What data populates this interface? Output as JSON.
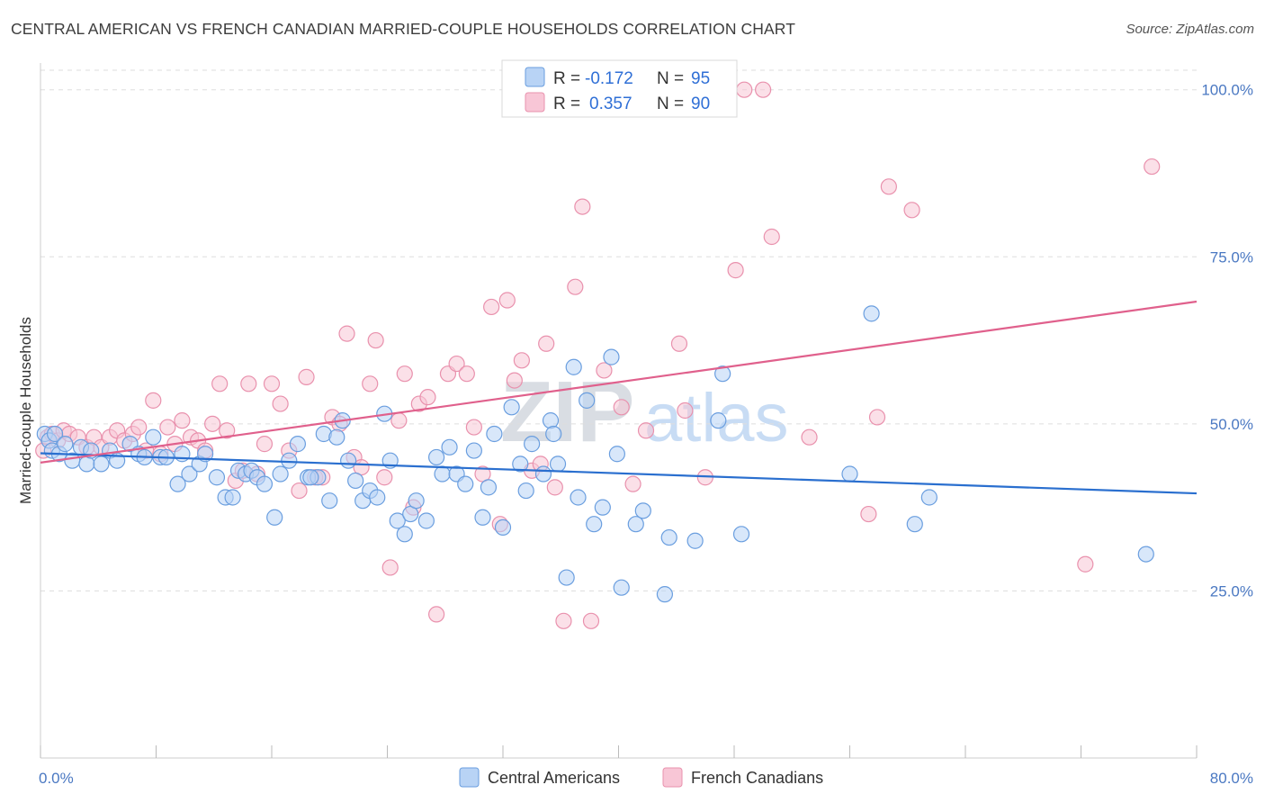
{
  "title": "CENTRAL AMERICAN VS FRENCH CANADIAN MARRIED-COUPLE HOUSEHOLDS CORRELATION CHART",
  "source": "Source: ZipAtlas.com",
  "watermark": {
    "zip": "ZIP",
    "atlas": "atlas"
  },
  "colors": {
    "blue_fill": "#b8d3f5",
    "blue_stroke": "#6a9edf",
    "blue_line": "#2a6fcf",
    "pink_fill": "#f8c6d6",
    "pink_stroke": "#e991ad",
    "pink_line": "#e0608c",
    "grid": "#dddddd",
    "axis_label": "#4a78c2"
  },
  "legend": {
    "r_label": "R =",
    "n_label": "N =",
    "rows": [
      {
        "r": "-0.172",
        "n": "95",
        "color": "blue"
      },
      {
        "r": "0.357",
        "n": "90",
        "color": "pink"
      }
    ]
  },
  "chart_data": {
    "type": "scatter",
    "xlabel": "",
    "ylabel": "Married-couple Households",
    "xlim": [
      0,
      80
    ],
    "ylim": [
      0,
      104
    ],
    "y_ticks": [
      {
        "value": 25,
        "label": "25.0%"
      },
      {
        "value": 50,
        "label": "50.0%"
      },
      {
        "value": 75,
        "label": "75.0%"
      },
      {
        "value": 100,
        "label": "100.0%"
      }
    ],
    "x_tick_labels": [
      {
        "value": 0,
        "label": "0.0%"
      },
      {
        "value": 80,
        "label": "80.0%"
      }
    ],
    "x_minor_ticks": [
      0,
      8,
      16,
      24,
      32,
      40,
      48,
      56,
      64,
      72,
      80
    ],
    "grid": true,
    "legend_position": "top-center",
    "series": [
      {
        "name": "Central Americans",
        "color": "blue",
        "trend": {
          "x": [
            0,
            80
          ],
          "y": [
            45.6,
            39.6
          ]
        },
        "points": [
          [
            0.3,
            48.5
          ],
          [
            0.6,
            47.5
          ],
          [
            0.8,
            46
          ],
          [
            1.0,
            48.5
          ],
          [
            1.3,
            45.5
          ],
          [
            1.7,
            47
          ],
          [
            2.2,
            44.5
          ],
          [
            2.8,
            46.5
          ],
          [
            3.2,
            44
          ],
          [
            3.5,
            46
          ],
          [
            4.2,
            44
          ],
          [
            4.8,
            46
          ],
          [
            5.3,
            44.5
          ],
          [
            6.2,
            47
          ],
          [
            6.8,
            45.5
          ],
          [
            7.2,
            45
          ],
          [
            7.8,
            48
          ],
          [
            8.3,
            45
          ],
          [
            8.7,
            45
          ],
          [
            9.5,
            41
          ],
          [
            9.8,
            45.5
          ],
          [
            10.3,
            42.5
          ],
          [
            11.0,
            44
          ],
          [
            11.4,
            45.5
          ],
          [
            12.2,
            42
          ],
          [
            12.8,
            39
          ],
          [
            13.3,
            39
          ],
          [
            13.7,
            43
          ],
          [
            14.2,
            42.5
          ],
          [
            14.6,
            43
          ],
          [
            15.0,
            42
          ],
          [
            15.5,
            41
          ],
          [
            16.2,
            36
          ],
          [
            16.6,
            42.5
          ],
          [
            17.2,
            44.5
          ],
          [
            17.8,
            47
          ],
          [
            18.5,
            42
          ],
          [
            19.2,
            42
          ],
          [
            19.6,
            48.5
          ],
          [
            20.0,
            38.5
          ],
          [
            20.5,
            48
          ],
          [
            20.9,
            50.5
          ],
          [
            21.3,
            44.5
          ],
          [
            21.8,
            41.5
          ],
          [
            22.3,
            38.5
          ],
          [
            22.8,
            40
          ],
          [
            23.3,
            39
          ],
          [
            23.8,
            51.5
          ],
          [
            24.2,
            44.5
          ],
          [
            24.7,
            35.5
          ],
          [
            25.2,
            33.5
          ],
          [
            25.6,
            36.5
          ],
          [
            26.0,
            38.5
          ],
          [
            26.7,
            35.5
          ],
          [
            27.4,
            45
          ],
          [
            27.8,
            42.5
          ],
          [
            28.3,
            46.5
          ],
          [
            28.8,
            42.5
          ],
          [
            29.4,
            41
          ],
          [
            30.0,
            46
          ],
          [
            30.6,
            36
          ],
          [
            31.0,
            40.5
          ],
          [
            31.4,
            48.5
          ],
          [
            32.0,
            34.5
          ],
          [
            32.6,
            52.5
          ],
          [
            33.2,
            44
          ],
          [
            33.6,
            40
          ],
          [
            34.0,
            47
          ],
          [
            34.8,
            42.5
          ],
          [
            35.3,
            50.5
          ],
          [
            35.8,
            44
          ],
          [
            36.4,
            27
          ],
          [
            36.9,
            58.5
          ],
          [
            37.2,
            39
          ],
          [
            37.8,
            53.5
          ],
          [
            38.3,
            35
          ],
          [
            38.9,
            37.5
          ],
          [
            39.5,
            60
          ],
          [
            39.9,
            45.5
          ],
          [
            40.2,
            25.5
          ],
          [
            41.2,
            35
          ],
          [
            41.7,
            37
          ],
          [
            43.2,
            24.5
          ],
          [
            43.5,
            33
          ],
          [
            45.3,
            32.5
          ],
          [
            46.9,
            50.5
          ],
          [
            47.2,
            57.5
          ],
          [
            48.5,
            33.5
          ],
          [
            56.0,
            42.5
          ],
          [
            57.5,
            66.5
          ],
          [
            60.5,
            35
          ],
          [
            61.5,
            39
          ],
          [
            76.5,
            30.5
          ],
          [
            35.5,
            48.5
          ],
          [
            18.7,
            42
          ]
        ]
      },
      {
        "name": "French Canadians",
        "color": "pink",
        "trend": {
          "x": [
            0,
            80
          ],
          "y": [
            44.2,
            68.3
          ]
        },
        "points": [
          [
            0.2,
            46
          ],
          [
            0.5,
            48
          ],
          [
            0.8,
            48.5
          ],
          [
            1.2,
            47.5
          ],
          [
            1.6,
            49
          ],
          [
            2.0,
            48.5
          ],
          [
            2.6,
            48
          ],
          [
            3.2,
            46.5
          ],
          [
            3.7,
            48
          ],
          [
            4.2,
            46.5
          ],
          [
            4.8,
            48
          ],
          [
            5.3,
            49
          ],
          [
            5.8,
            47.5
          ],
          [
            6.4,
            48.5
          ],
          [
            6.8,
            49.5
          ],
          [
            7.3,
            46
          ],
          [
            7.8,
            53.5
          ],
          [
            8.3,
            45.5
          ],
          [
            8.8,
            49.5
          ],
          [
            9.3,
            47
          ],
          [
            9.8,
            50.5
          ],
          [
            10.4,
            48
          ],
          [
            10.9,
            47.5
          ],
          [
            11.4,
            46
          ],
          [
            11.9,
            50
          ],
          [
            12.4,
            56
          ],
          [
            12.9,
            49
          ],
          [
            13.5,
            41.5
          ],
          [
            14.0,
            43
          ],
          [
            14.4,
            56
          ],
          [
            15.0,
            42.5
          ],
          [
            15.5,
            47
          ],
          [
            16.0,
            56
          ],
          [
            16.6,
            53
          ],
          [
            17.2,
            46
          ],
          [
            17.9,
            40
          ],
          [
            18.4,
            57
          ],
          [
            19.0,
            42
          ],
          [
            19.5,
            42
          ],
          [
            20.2,
            51
          ],
          [
            20.7,
            50
          ],
          [
            21.2,
            63.5
          ],
          [
            21.7,
            45
          ],
          [
            22.2,
            43.5
          ],
          [
            22.8,
            56
          ],
          [
            23.2,
            62.5
          ],
          [
            23.8,
            42
          ],
          [
            24.2,
            28.5
          ],
          [
            24.8,
            50.5
          ],
          [
            25.2,
            57.5
          ],
          [
            25.8,
            37.5
          ],
          [
            26.2,
            53
          ],
          [
            26.8,
            54
          ],
          [
            27.4,
            21.5
          ],
          [
            28.2,
            57.5
          ],
          [
            28.8,
            59
          ],
          [
            29.5,
            57.5
          ],
          [
            30.0,
            49.5
          ],
          [
            30.6,
            42.5
          ],
          [
            31.2,
            67.5
          ],
          [
            31.8,
            35
          ],
          [
            32.3,
            68.5
          ],
          [
            32.8,
            56.5
          ],
          [
            33.3,
            59.5
          ],
          [
            34.0,
            43
          ],
          [
            34.6,
            44
          ],
          [
            35.0,
            62
          ],
          [
            35.6,
            40.5
          ],
          [
            36.2,
            20.5
          ],
          [
            37.0,
            70.5
          ],
          [
            37.5,
            82.5
          ],
          [
            38.1,
            20.5
          ],
          [
            39.0,
            58
          ],
          [
            40.2,
            52.5
          ],
          [
            41.0,
            41
          ],
          [
            41.9,
            49
          ],
          [
            44.2,
            62
          ],
          [
            44.6,
            52
          ],
          [
            46.0,
            42
          ],
          [
            48.1,
            73
          ],
          [
            48.7,
            100
          ],
          [
            50.0,
            100
          ],
          [
            50.6,
            78
          ],
          [
            53.2,
            48
          ],
          [
            57.3,
            36.5
          ],
          [
            57.9,
            51
          ],
          [
            58.7,
            85.5
          ],
          [
            60.3,
            82
          ],
          [
            72.3,
            29
          ],
          [
            76.9,
            88.5
          ]
        ]
      }
    ]
  },
  "bottom_legend": [
    {
      "label": "Central Americans",
      "color": "blue"
    },
    {
      "label": "French Canadians",
      "color": "pink"
    }
  ]
}
